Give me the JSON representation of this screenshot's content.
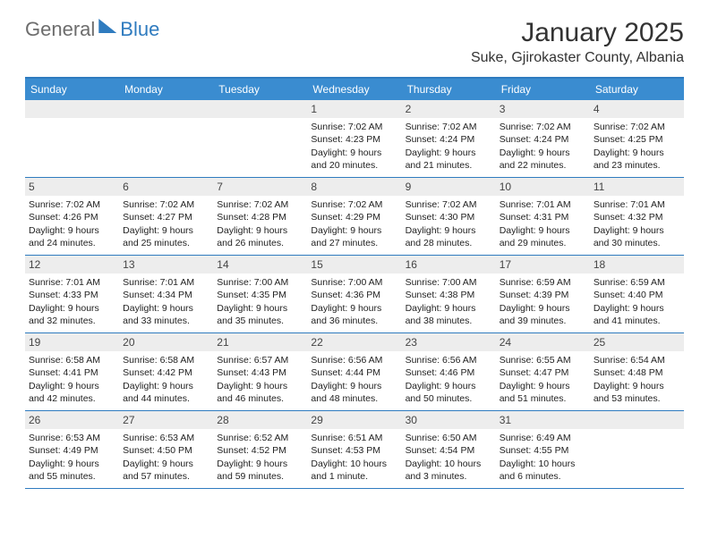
{
  "logo": {
    "part1": "General",
    "part2": "Blue"
  },
  "title": "January 2025",
  "location": "Suke, Gjirokaster County, Albania",
  "colors": {
    "header_bg": "#3a8cd0",
    "accent": "#2f7bbf",
    "daynum_bg": "#ededed",
    "text": "#222222",
    "logo_gray": "#6d6d6d"
  },
  "weekdays": [
    "Sunday",
    "Monday",
    "Tuesday",
    "Wednesday",
    "Thursday",
    "Friday",
    "Saturday"
  ],
  "weeks": [
    [
      {
        "day": "",
        "lines": []
      },
      {
        "day": "",
        "lines": []
      },
      {
        "day": "",
        "lines": []
      },
      {
        "day": "1",
        "lines": [
          "Sunrise: 7:02 AM",
          "Sunset: 4:23 PM",
          "Daylight: 9 hours and 20 minutes."
        ]
      },
      {
        "day": "2",
        "lines": [
          "Sunrise: 7:02 AM",
          "Sunset: 4:24 PM",
          "Daylight: 9 hours and 21 minutes."
        ]
      },
      {
        "day": "3",
        "lines": [
          "Sunrise: 7:02 AM",
          "Sunset: 4:24 PM",
          "Daylight: 9 hours and 22 minutes."
        ]
      },
      {
        "day": "4",
        "lines": [
          "Sunrise: 7:02 AM",
          "Sunset: 4:25 PM",
          "Daylight: 9 hours and 23 minutes."
        ]
      }
    ],
    [
      {
        "day": "5",
        "lines": [
          "Sunrise: 7:02 AM",
          "Sunset: 4:26 PM",
          "Daylight: 9 hours and 24 minutes."
        ]
      },
      {
        "day": "6",
        "lines": [
          "Sunrise: 7:02 AM",
          "Sunset: 4:27 PM",
          "Daylight: 9 hours and 25 minutes."
        ]
      },
      {
        "day": "7",
        "lines": [
          "Sunrise: 7:02 AM",
          "Sunset: 4:28 PM",
          "Daylight: 9 hours and 26 minutes."
        ]
      },
      {
        "day": "8",
        "lines": [
          "Sunrise: 7:02 AM",
          "Sunset: 4:29 PM",
          "Daylight: 9 hours and 27 minutes."
        ]
      },
      {
        "day": "9",
        "lines": [
          "Sunrise: 7:02 AM",
          "Sunset: 4:30 PM",
          "Daylight: 9 hours and 28 minutes."
        ]
      },
      {
        "day": "10",
        "lines": [
          "Sunrise: 7:01 AM",
          "Sunset: 4:31 PM",
          "Daylight: 9 hours and 29 minutes."
        ]
      },
      {
        "day": "11",
        "lines": [
          "Sunrise: 7:01 AM",
          "Sunset: 4:32 PM",
          "Daylight: 9 hours and 30 minutes."
        ]
      }
    ],
    [
      {
        "day": "12",
        "lines": [
          "Sunrise: 7:01 AM",
          "Sunset: 4:33 PM",
          "Daylight: 9 hours and 32 minutes."
        ]
      },
      {
        "day": "13",
        "lines": [
          "Sunrise: 7:01 AM",
          "Sunset: 4:34 PM",
          "Daylight: 9 hours and 33 minutes."
        ]
      },
      {
        "day": "14",
        "lines": [
          "Sunrise: 7:00 AM",
          "Sunset: 4:35 PM",
          "Daylight: 9 hours and 35 minutes."
        ]
      },
      {
        "day": "15",
        "lines": [
          "Sunrise: 7:00 AM",
          "Sunset: 4:36 PM",
          "Daylight: 9 hours and 36 minutes."
        ]
      },
      {
        "day": "16",
        "lines": [
          "Sunrise: 7:00 AM",
          "Sunset: 4:38 PM",
          "Daylight: 9 hours and 38 minutes."
        ]
      },
      {
        "day": "17",
        "lines": [
          "Sunrise: 6:59 AM",
          "Sunset: 4:39 PM",
          "Daylight: 9 hours and 39 minutes."
        ]
      },
      {
        "day": "18",
        "lines": [
          "Sunrise: 6:59 AM",
          "Sunset: 4:40 PM",
          "Daylight: 9 hours and 41 minutes."
        ]
      }
    ],
    [
      {
        "day": "19",
        "lines": [
          "Sunrise: 6:58 AM",
          "Sunset: 4:41 PM",
          "Daylight: 9 hours and 42 minutes."
        ]
      },
      {
        "day": "20",
        "lines": [
          "Sunrise: 6:58 AM",
          "Sunset: 4:42 PM",
          "Daylight: 9 hours and 44 minutes."
        ]
      },
      {
        "day": "21",
        "lines": [
          "Sunrise: 6:57 AM",
          "Sunset: 4:43 PM",
          "Daylight: 9 hours and 46 minutes."
        ]
      },
      {
        "day": "22",
        "lines": [
          "Sunrise: 6:56 AM",
          "Sunset: 4:44 PM",
          "Daylight: 9 hours and 48 minutes."
        ]
      },
      {
        "day": "23",
        "lines": [
          "Sunrise: 6:56 AM",
          "Sunset: 4:46 PM",
          "Daylight: 9 hours and 50 minutes."
        ]
      },
      {
        "day": "24",
        "lines": [
          "Sunrise: 6:55 AM",
          "Sunset: 4:47 PM",
          "Daylight: 9 hours and 51 minutes."
        ]
      },
      {
        "day": "25",
        "lines": [
          "Sunrise: 6:54 AM",
          "Sunset: 4:48 PM",
          "Daylight: 9 hours and 53 minutes."
        ]
      }
    ],
    [
      {
        "day": "26",
        "lines": [
          "Sunrise: 6:53 AM",
          "Sunset: 4:49 PM",
          "Daylight: 9 hours and 55 minutes."
        ]
      },
      {
        "day": "27",
        "lines": [
          "Sunrise: 6:53 AM",
          "Sunset: 4:50 PM",
          "Daylight: 9 hours and 57 minutes."
        ]
      },
      {
        "day": "28",
        "lines": [
          "Sunrise: 6:52 AM",
          "Sunset: 4:52 PM",
          "Daylight: 9 hours and 59 minutes."
        ]
      },
      {
        "day": "29",
        "lines": [
          "Sunrise: 6:51 AM",
          "Sunset: 4:53 PM",
          "Daylight: 10 hours and 1 minute."
        ]
      },
      {
        "day": "30",
        "lines": [
          "Sunrise: 6:50 AM",
          "Sunset: 4:54 PM",
          "Daylight: 10 hours and 3 minutes."
        ]
      },
      {
        "day": "31",
        "lines": [
          "Sunrise: 6:49 AM",
          "Sunset: 4:55 PM",
          "Daylight: 10 hours and 6 minutes."
        ]
      },
      {
        "day": "",
        "lines": []
      }
    ]
  ]
}
